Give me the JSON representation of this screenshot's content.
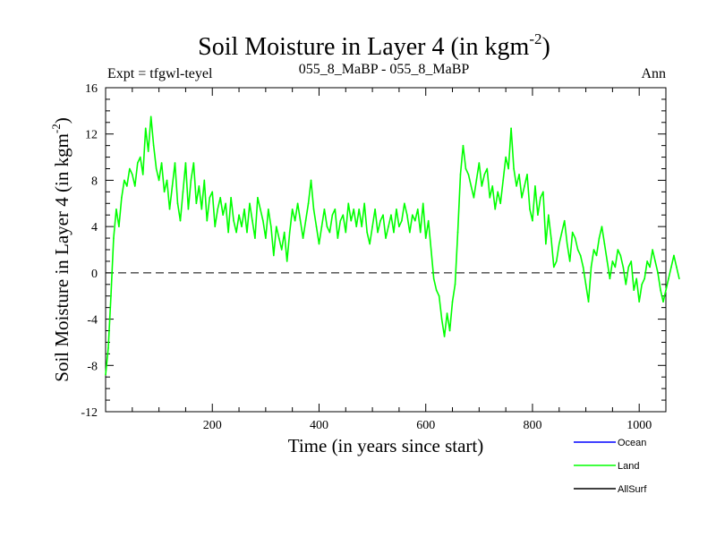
{
  "title_main": "Soil Moisture in Layer 4 (in kgm",
  "title_sup": "-2",
  "title_close": ")",
  "subtitle_left": "Expt = tfgwl-teyel",
  "subtitle_center": "055_8_MaBP - 055_8_MaBP",
  "subtitle_right": "Ann",
  "colors": {
    "ocean": "#0000ff",
    "land": "#00ff00",
    "allsurf": "#000000",
    "axis": "#000000",
    "zero_line": "#000000"
  },
  "chart_data": {
    "type": "line",
    "title": "Soil Moisture in Layer 4 (in kgm-2)",
    "xlabel": "Time (in years since start)",
    "ylabel_main": "Soil Moisture in Layer 4 (in kgm",
    "ylabel_sup": "-2",
    "ylabel_close": ")",
    "xlim": [
      0,
      1050
    ],
    "ylim": [
      -12,
      16
    ],
    "x_ticks": [
      200,
      400,
      600,
      800,
      1000
    ],
    "y_ticks": [
      -12,
      -8,
      -4,
      0,
      4,
      8,
      12,
      16
    ],
    "zero_line": true,
    "legend": [
      {
        "name": "Ocean",
        "color": "#0000ff"
      },
      {
        "name": "Land",
        "color": "#00ff00"
      },
      {
        "name": "AllSurf",
        "color": "#000000"
      }
    ],
    "series": [
      {
        "name": "Land",
        "color": "#00ff00",
        "x_start": 0,
        "x_step": 5,
        "values": [
          -8.8,
          -6.5,
          -2.0,
          3.0,
          5.5,
          4.0,
          6.5,
          8.0,
          7.5,
          9.0,
          8.5,
          7.5,
          9.5,
          10.0,
          8.5,
          12.5,
          10.5,
          13.5,
          11.0,
          9.0,
          8.0,
          9.5,
          7.0,
          8.0,
          5.5,
          7.5,
          9.5,
          6.0,
          4.5,
          7.0,
          9.5,
          5.5,
          8.0,
          9.5,
          6.0,
          7.5,
          5.5,
          8.0,
          4.5,
          6.5,
          7.0,
          4.0,
          5.5,
          6.5,
          5.0,
          6.0,
          3.5,
          6.5,
          4.5,
          3.5,
          5.0,
          4.0,
          5.5,
          3.5,
          6.0,
          4.5,
          3.0,
          6.5,
          5.5,
          4.5,
          3.0,
          5.5,
          4.0,
          1.5,
          4.0,
          3.0,
          2.0,
          3.5,
          1.0,
          3.5,
          5.5,
          4.5,
          6.0,
          4.5,
          3.0,
          4.5,
          6.0,
          8.0,
          5.5,
          4.0,
          2.5,
          4.0,
          5.5,
          4.0,
          3.5,
          5.0,
          5.5,
          3.0,
          4.5,
          5.0,
          3.5,
          6.0,
          4.5,
          5.5,
          4.0,
          5.5,
          4.0,
          6.0,
          3.5,
          2.5,
          4.0,
          5.5,
          3.5,
          4.5,
          5.0,
          3.0,
          4.0,
          5.0,
          3.5,
          5.5,
          4.0,
          4.5,
          6.0,
          5.0,
          3.5,
          5.0,
          4.5,
          5.5,
          3.5,
          6.0,
          3.0,
          4.5,
          2.0,
          -0.5,
          -1.5,
          -2.0,
          -4.0,
          -5.5,
          -3.5,
          -5.0,
          -2.5,
          -1.0,
          3.5,
          8.5,
          11.0,
          9.0,
          8.5,
          7.5,
          6.5,
          8.0,
          9.5,
          7.5,
          8.5,
          9.0,
          6.5,
          7.5,
          5.5,
          7.0,
          6.0,
          8.0,
          10.0,
          9.0,
          12.5,
          9.0,
          7.5,
          8.5,
          6.5,
          7.5,
          8.5,
          5.5,
          4.5,
          7.5,
          5.0,
          6.5,
          7.0,
          2.5,
          5.0,
          3.0,
          0.5,
          1.0,
          2.5,
          3.5,
          4.5,
          2.5,
          1.0,
          3.5,
          3.0,
          2.0,
          1.5,
          0.5,
          -1.0,
          -2.5,
          0.5,
          2.0,
          1.5,
          3.0,
          4.0,
          2.5,
          1.0,
          -0.5,
          1.0,
          0.5,
          2.0,
          1.5,
          0.5,
          -1.0,
          0.5,
          1.0,
          -1.5,
          -0.5,
          -2.5,
          -1.0,
          -0.5,
          1.0,
          0.5,
          2.0,
          1.0,
          0.0,
          -1.5,
          -2.5,
          -1.5,
          -0.5,
          0.5,
          1.5,
          0.5,
          -0.5
        ]
      }
    ]
  }
}
